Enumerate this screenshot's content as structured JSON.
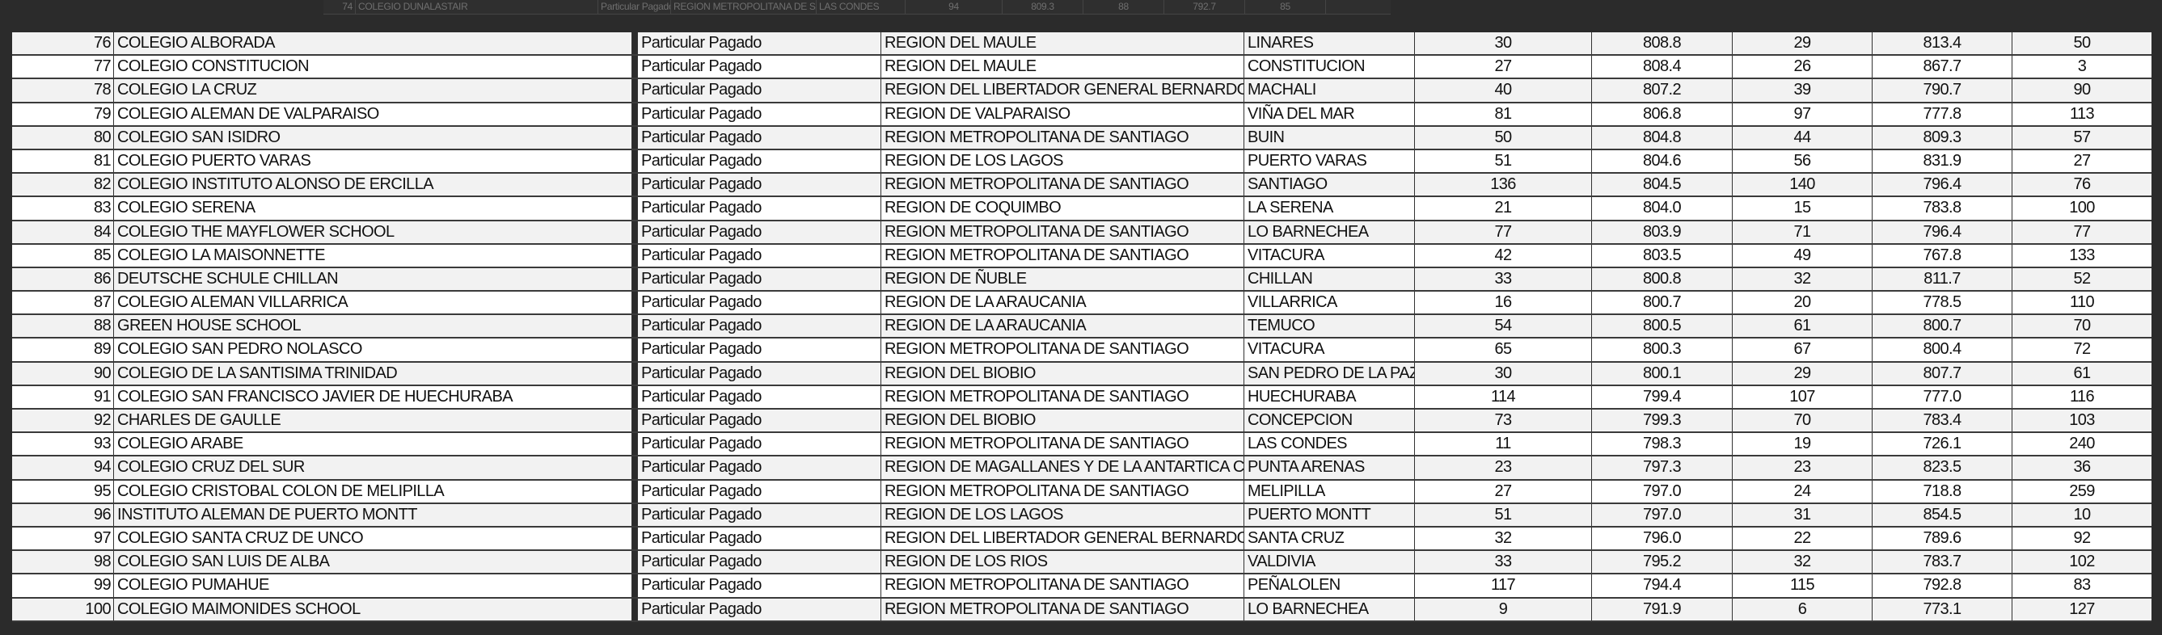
{
  "background_row": [
    "74",
    "COLEGIO DUNALASTAIR",
    "Particular Pagado",
    "REGION METROPOLITANA DE SANTIAGO",
    "LAS CONDES",
    "94",
    "809.3",
    "88",
    "792.7",
    "85"
  ],
  "rows": [
    [
      "76",
      "COLEGIO ALBORADA",
      "Particular Pagado",
      "REGION DEL MAULE",
      "LINARES",
      "30",
      "808.8",
      "29",
      "813.4",
      "50"
    ],
    [
      "77",
      "COLEGIO CONSTITUCION",
      "Particular Pagado",
      "REGION DEL MAULE",
      "CONSTITUCION",
      "27",
      "808.4",
      "26",
      "867.7",
      "3"
    ],
    [
      "78",
      "COLEGIO LA CRUZ",
      "Particular Pagado",
      "REGION DEL LIBERTADOR GENERAL BERNARDO O'HIGGINS",
      "MACHALI",
      "40",
      "807.2",
      "39",
      "790.7",
      "90"
    ],
    [
      "79",
      "COLEGIO ALEMAN DE VALPARAISO",
      "Particular Pagado",
      "REGION DE VALPARAISO",
      "VIÑA DEL MAR",
      "81",
      "806.8",
      "97",
      "777.8",
      "113"
    ],
    [
      "80",
      "COLEGIO SAN ISIDRO",
      "Particular Pagado",
      "REGION METROPOLITANA DE SANTIAGO",
      "BUIN",
      "50",
      "804.8",
      "44",
      "809.3",
      "57"
    ],
    [
      "81",
      "COLEGIO PUERTO VARAS",
      "Particular Pagado",
      "REGION DE LOS LAGOS",
      "PUERTO VARAS",
      "51",
      "804.6",
      "56",
      "831.9",
      "27"
    ],
    [
      "82",
      "COLEGIO INSTITUTO ALONSO DE ERCILLA",
      "Particular Pagado",
      "REGION METROPOLITANA DE SANTIAGO",
      "SANTIAGO",
      "136",
      "804.5",
      "140",
      "796.4",
      "76"
    ],
    [
      "83",
      "COLEGIO SERENA",
      "Particular Pagado",
      "REGION DE COQUIMBO",
      "LA SERENA",
      "21",
      "804.0",
      "15",
      "783.8",
      "100"
    ],
    [
      "84",
      "COLEGIO THE MAYFLOWER SCHOOL",
      "Particular Pagado",
      "REGION METROPOLITANA DE SANTIAGO",
      "LO BARNECHEA",
      "77",
      "803.9",
      "71",
      "796.4",
      "77"
    ],
    [
      "85",
      "COLEGIO LA MAISONNETTE",
      "Particular Pagado",
      "REGION METROPOLITANA DE SANTIAGO",
      "VITACURA",
      "42",
      "803.5",
      "49",
      "767.8",
      "133"
    ],
    [
      "86",
      "DEUTSCHE SCHULE CHILLAN",
      "Particular Pagado",
      "REGION DE ÑUBLE",
      "CHILLAN",
      "33",
      "800.8",
      "32",
      "811.7",
      "52"
    ],
    [
      "87",
      "COLEGIO ALEMAN VILLARRICA",
      "Particular Pagado",
      "REGION DE LA ARAUCANIA",
      "VILLARRICA",
      "16",
      "800.7",
      "20",
      "778.5",
      "110"
    ],
    [
      "88",
      "GREEN HOUSE SCHOOL",
      "Particular Pagado",
      "REGION DE LA ARAUCANIA",
      "TEMUCO",
      "54",
      "800.5",
      "61",
      "800.7",
      "70"
    ],
    [
      "89",
      "COLEGIO SAN PEDRO NOLASCO",
      "Particular Pagado",
      "REGION METROPOLITANA DE SANTIAGO",
      "VITACURA",
      "65",
      "800.3",
      "67",
      "800.4",
      "72"
    ],
    [
      "90",
      "COLEGIO DE LA SANTISIMA TRINIDAD",
      "Particular Pagado",
      "REGION DEL BIOBIO",
      "SAN PEDRO DE LA PAZ",
      "30",
      "800.1",
      "29",
      "807.7",
      "61"
    ],
    [
      "91",
      "COLEGIO SAN FRANCISCO JAVIER DE HUECHURABA",
      "Particular Pagado",
      "REGION METROPOLITANA DE SANTIAGO",
      "HUECHURABA",
      "114",
      "799.4",
      "107",
      "777.0",
      "116"
    ],
    [
      "92",
      "CHARLES DE GAULLE",
      "Particular Pagado",
      "REGION DEL BIOBIO",
      "CONCEPCION",
      "73",
      "799.3",
      "70",
      "783.4",
      "103"
    ],
    [
      "93",
      "COLEGIO ARABE",
      "Particular Pagado",
      "REGION METROPOLITANA DE SANTIAGO",
      "LAS CONDES",
      "11",
      "798.3",
      "19",
      "726.1",
      "240"
    ],
    [
      "94",
      "COLEGIO CRUZ DEL SUR",
      "Particular Pagado",
      "REGION DE MAGALLANES Y DE LA ANTARTICA CHILENA",
      "PUNTA ARENAS",
      "23",
      "797.3",
      "23",
      "823.5",
      "36"
    ],
    [
      "95",
      "COLEGIO CRISTOBAL COLON DE MELIPILLA",
      "Particular Pagado",
      "REGION METROPOLITANA DE SANTIAGO",
      "MELIPILLA",
      "27",
      "797.0",
      "24",
      "718.8",
      "259"
    ],
    [
      "96",
      "INSTITUTO ALEMAN DE PUERTO MONTT",
      "Particular Pagado",
      "REGION DE LOS LAGOS",
      "PUERTO MONTT",
      "51",
      "797.0",
      "31",
      "854.5",
      "10"
    ],
    [
      "97",
      "COLEGIO SANTA CRUZ DE UNCO",
      "Particular Pagado",
      "REGION DEL LIBERTADOR GENERAL BERNARDO O'HIGGINS",
      "SANTA CRUZ",
      "32",
      "796.0",
      "22",
      "789.6",
      "92"
    ],
    [
      "98",
      "COLEGIO SAN LUIS DE ALBA",
      "Particular Pagado",
      "REGION DE LOS RIOS",
      "VALDIVIA",
      "33",
      "795.2",
      "32",
      "783.7",
      "102"
    ],
    [
      "99",
      "COLEGIO PUMAHUE",
      "Particular Pagado",
      "REGION METROPOLITANA DE SANTIAGO",
      "PEÑALOLEN",
      "117",
      "794.4",
      "115",
      "792.8",
      "83"
    ],
    [
      "100",
      "COLEGIO MAIMONIDES SCHOOL",
      "Particular Pagado",
      "REGION METROPOLITANA DE SANTIAGO",
      "LO BARNECHEA",
      "9",
      "791.9",
      "6",
      "773.1",
      "127"
    ]
  ],
  "colors": {
    "background": "#2b2b2b",
    "row_alt": "#f2f2f2",
    "row": "#ffffff",
    "grid": "#333333"
  }
}
